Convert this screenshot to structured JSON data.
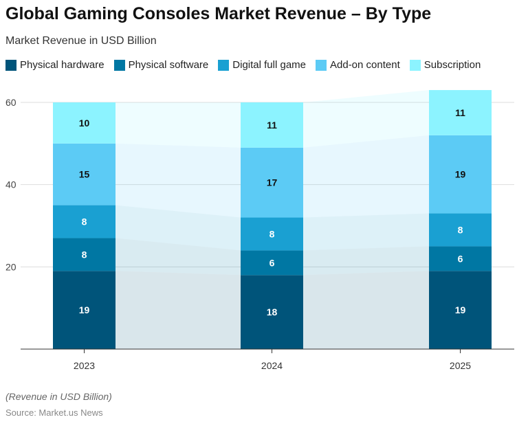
{
  "chart_data": {
    "type": "bar",
    "stacked": true,
    "title": "Global Gaming Consoles Market Revenue – By Type",
    "subtitle": "Market Revenue in USD Billion",
    "categories": [
      "2023",
      "2024",
      "2025"
    ],
    "series": [
      {
        "name": "Physical hardware",
        "values": [
          19,
          18,
          19
        ],
        "color": "#00547a"
      },
      {
        "name": "Physical software",
        "values": [
          8,
          6,
          6
        ],
        "color": "#0077a3"
      },
      {
        "name": "Digital full game",
        "values": [
          8,
          8,
          8
        ],
        "color": "#1aa0d2"
      },
      {
        "name": "Add-on content",
        "values": [
          15,
          17,
          19
        ],
        "color": "#5ccbf5"
      },
      {
        "name": "Subscription",
        "values": [
          10,
          11,
          11
        ],
        "color": "#8cf3ff"
      }
    ],
    "ylim": [
      0,
      60
    ],
    "yticks": [
      20,
      40,
      60
    ],
    "grid": true,
    "legend": "top-left",
    "note": "(Revenue in USD Billion)",
    "source": "Source: Market.us News"
  }
}
